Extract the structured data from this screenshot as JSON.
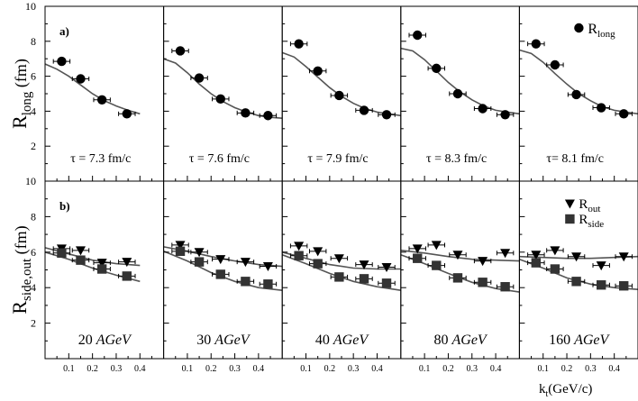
{
  "chart_data": {
    "type": "scatter",
    "figure_kind": "multi-panel physics plot, 2 rows x 5 columns with fit curves",
    "x_axis": {
      "label_main": "k",
      "label_sub": "t",
      "label_unit": "(GeV/c)",
      "range": [
        0,
        0.5
      ],
      "ticks": [
        "0.1",
        "0.2",
        "0.3",
        "0.4"
      ]
    },
    "x_bins": [
      0.07,
      0.15,
      0.24,
      0.345,
      0.44
    ],
    "x_error": 0.035,
    "energies": [
      {
        "value": "20",
        "unit": "AGeV"
      },
      {
        "value": "30",
        "unit": "AGeV"
      },
      {
        "value": "40",
        "unit": "AGeV"
      },
      {
        "value": "80",
        "unit": "AGeV"
      },
      {
        "value": "160",
        "unit": "AGeV"
      }
    ],
    "rows": [
      {
        "panel_tag": "a)",
        "y_axis": {
          "label_main": "R",
          "label_sub": "long",
          "label_unit": "(fm)",
          "range": [
            0,
            10
          ],
          "ticks": [
            "2",
            "4",
            "6",
            "8",
            "10"
          ]
        },
        "legend": [
          {
            "marker": "circle",
            "main": "R",
            "sub": "long"
          }
        ],
        "annotations": [
          "τ = 7.3 fm/c",
          "τ = 7.6 fm/c",
          "τ = 7.9 fm/c",
          "τ = 8.3 fm/c",
          "τ= 8.1 fm/c"
        ],
        "series": [
          {
            "name": "R_long",
            "marker": "circle",
            "panels": [
              {
                "x": [
                  0.07,
                  0.15,
                  0.24,
                  0.345
                ],
                "y": [
                  6.85,
                  5.85,
                  4.65,
                  3.85
                ]
              },
              {
                "x": [
                  0.07,
                  0.15,
                  0.24,
                  0.345,
                  0.44
                ],
                "y": [
                  7.45,
                  5.9,
                  4.7,
                  3.9,
                  3.75
                ]
              },
              {
                "x": [
                  0.07,
                  0.15,
                  0.24,
                  0.345,
                  0.44
                ],
                "y": [
                  7.85,
                  6.3,
                  4.9,
                  4.05,
                  3.8
                ]
              },
              {
                "x": [
                  0.07,
                  0.15,
                  0.24,
                  0.345,
                  0.44
                ],
                "y": [
                  8.35,
                  6.45,
                  5.0,
                  4.15,
                  3.8
                ]
              },
              {
                "x": [
                  0.07,
                  0.15,
                  0.24,
                  0.345,
                  0.44
                ],
                "y": [
                  7.85,
                  6.65,
                  4.95,
                  4.2,
                  3.85
                ]
              }
            ]
          }
        ],
        "fits": [
          {
            "x": [
              0,
              0.05,
              0.1,
              0.15,
              0.2,
              0.25,
              0.3,
              0.35,
              0.4
            ],
            "y": [
              6.7,
              6.4,
              6.0,
              5.5,
              5.0,
              4.6,
              4.3,
              4.05,
              3.85
            ]
          },
          {
            "x": [
              0,
              0.05,
              0.1,
              0.15,
              0.2,
              0.25,
              0.3,
              0.35,
              0.4,
              0.45,
              0.5
            ],
            "y": [
              7.0,
              6.75,
              6.2,
              5.55,
              5.0,
              4.55,
              4.2,
              3.95,
              3.75,
              3.65,
              3.6
            ]
          },
          {
            "x": [
              0,
              0.05,
              0.1,
              0.15,
              0.2,
              0.25,
              0.3,
              0.35,
              0.4,
              0.45,
              0.5
            ],
            "y": [
              7.35,
              7.1,
              6.55,
              5.95,
              5.35,
              4.85,
              4.45,
              4.15,
              3.95,
              3.85,
              3.75
            ]
          },
          {
            "x": [
              0,
              0.05,
              0.1,
              0.15,
              0.2,
              0.25,
              0.3,
              0.35,
              0.4,
              0.45,
              0.5
            ],
            "y": [
              7.6,
              7.45,
              6.95,
              6.3,
              5.65,
              5.1,
              4.65,
              4.3,
              4.05,
              3.95,
              3.85
            ]
          },
          {
            "x": [
              0,
              0.05,
              0.1,
              0.15,
              0.2,
              0.25,
              0.3,
              0.35,
              0.4,
              0.45,
              0.5
            ],
            "y": [
              7.5,
              7.3,
              6.8,
              6.15,
              5.55,
              5.0,
              4.6,
              4.25,
              4.05,
              3.95,
              3.85
            ]
          }
        ]
      },
      {
        "panel_tag": "b)",
        "y_axis": {
          "label_main": "R",
          "label_sub": "side,out",
          "label_unit": "(fm)",
          "range": [
            0,
            10
          ],
          "ticks": [
            "2",
            "4",
            "6",
            "8",
            "10"
          ]
        },
        "legend": [
          {
            "marker": "triangle-down",
            "main": "R",
            "sub": "out"
          },
          {
            "marker": "square",
            "main": "R",
            "sub": "side"
          }
        ],
        "annotations": [],
        "series": [
          {
            "name": "R_out",
            "marker": "triangle-down",
            "panels": [
              {
                "x": [
                  0.07,
                  0.15,
                  0.24,
                  0.345
                ],
                "y": [
                  6.2,
                  6.1,
                  5.4,
                  5.45
                ]
              },
              {
                "x": [
                  0.07,
                  0.15,
                  0.24,
                  0.345,
                  0.44
                ],
                "y": [
                  6.4,
                  6.0,
                  5.6,
                  5.45,
                  5.2
                ]
              },
              {
                "x": [
                  0.07,
                  0.15,
                  0.24,
                  0.345,
                  0.44
                ],
                "y": [
                  6.35,
                  6.05,
                  5.65,
                  5.3,
                  5.15
                ]
              },
              {
                "x": [
                  0.07,
                  0.15,
                  0.24,
                  0.345,
                  0.44
                ],
                "y": [
                  6.2,
                  6.4,
                  5.85,
                  5.5,
                  5.95
                ]
              },
              {
                "x": [
                  0.07,
                  0.15,
                  0.24,
                  0.345,
                  0.44
                ],
                "y": [
                  5.85,
                  6.1,
                  5.75,
                  5.25,
                  5.75
                ]
              }
            ]
          },
          {
            "name": "R_side",
            "marker": "square",
            "panels": [
              {
                "x": [
                  0.07,
                  0.15,
                  0.24,
                  0.345
                ],
                "y": [
                  5.95,
                  5.55,
                  5.05,
                  4.65
                ]
              },
              {
                "x": [
                  0.07,
                  0.15,
                  0.24,
                  0.345,
                  0.44
                ],
                "y": [
                  6.05,
                  5.45,
                  4.75,
                  4.35,
                  4.2
                ]
              },
              {
                "x": [
                  0.07,
                  0.15,
                  0.24,
                  0.345,
                  0.44
                ],
                "y": [
                  5.8,
                  5.35,
                  4.6,
                  4.5,
                  4.25
                ]
              },
              {
                "x": [
                  0.07,
                  0.15,
                  0.24,
                  0.345,
                  0.44
                ],
                "y": [
                  5.65,
                  5.25,
                  4.55,
                  4.3,
                  4.05
                ]
              },
              {
                "x": [
                  0.07,
                  0.15,
                  0.24,
                  0.345,
                  0.44
                ],
                "y": [
                  5.4,
                  5.05,
                  4.35,
                  4.15,
                  4.1
                ]
              }
            ]
          }
        ],
        "fits": [
          {
            "x": [
              0,
              0.1,
              0.2,
              0.3,
              0.4
            ],
            "y": [
              6.25,
              5.9,
              5.55,
              5.35,
              5.25
            ]
          },
          {
            "x": [
              0,
              0.1,
              0.2,
              0.3,
              0.4
            ],
            "y": [
              6.0,
              5.6,
              5.1,
              4.7,
              4.35
            ]
          },
          {
            "x": [
              0,
              0.1,
              0.2,
              0.3,
              0.4,
              0.5
            ],
            "y": [
              6.3,
              6.05,
              5.75,
              5.5,
              5.3,
              5.2
            ]
          },
          {
            "x": [
              0,
              0.1,
              0.2,
              0.3,
              0.4,
              0.5
            ],
            "y": [
              6.05,
              5.5,
              4.85,
              4.35,
              4.0,
              3.85
            ]
          },
          {
            "x": [
              0,
              0.1,
              0.2,
              0.3,
              0.4,
              0.5
            ],
            "y": [
              6.0,
              5.65,
              5.3,
              5.1,
              5.05,
              5.05
            ]
          },
          {
            "x": [
              0,
              0.1,
              0.2,
              0.3,
              0.4,
              0.5
            ],
            "y": [
              5.85,
              5.35,
              4.8,
              4.35,
              4.05,
              3.85
            ]
          },
          {
            "x": [
              0,
              0.1,
              0.2,
              0.3,
              0.4,
              0.5
            ],
            "y": [
              6.1,
              5.95,
              5.75,
              5.6,
              5.55,
              5.5
            ]
          },
          {
            "x": [
              0,
              0.1,
              0.2,
              0.3,
              0.4,
              0.5
            ],
            "y": [
              5.85,
              5.35,
              4.8,
              4.3,
              3.95,
              3.75
            ]
          },
          {
            "x": [
              0,
              0.1,
              0.2,
              0.3,
              0.4,
              0.5
            ],
            "y": [
              5.75,
              5.7,
              5.65,
              5.65,
              5.7,
              5.75
            ]
          },
          {
            "x": [
              0,
              0.1,
              0.2,
              0.3,
              0.4,
              0.5
            ],
            "y": [
              5.6,
              5.1,
              4.55,
              4.2,
              4.0,
              3.9
            ]
          }
        ]
      }
    ]
  }
}
